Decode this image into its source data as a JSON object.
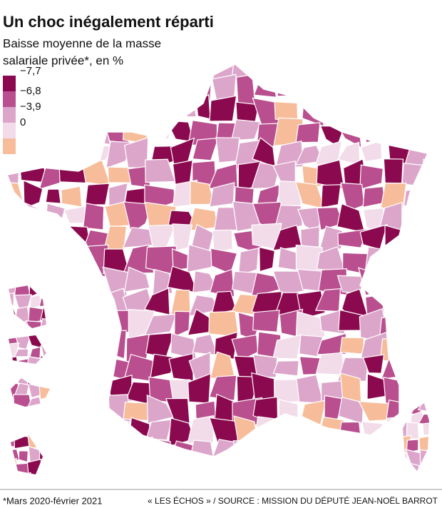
{
  "header": {
    "title": "Un choc inégalement réparti",
    "subtitle": [
      "Baisse moyenne de la masse",
      "salariale privée*, en %"
    ]
  },
  "legend": {
    "items": [
      {
        "label": "−7,7",
        "color": "#8b0a4f"
      },
      {
        "label": "−6,8",
        "color": "#b94f8f"
      },
      {
        "label": "−3,9",
        "color": "#dca6cb"
      },
      {
        "label": "0",
        "color": "#f3dcea"
      }
    ],
    "extra_color": "#f7bd9a"
  },
  "footer": {
    "note": "*Mars 2020-février 2021",
    "source": "« LES ÉCHOS » / SOURCE : MISSION DU DÉPUTÉ JEAN-NOËL BARROT"
  }
}
